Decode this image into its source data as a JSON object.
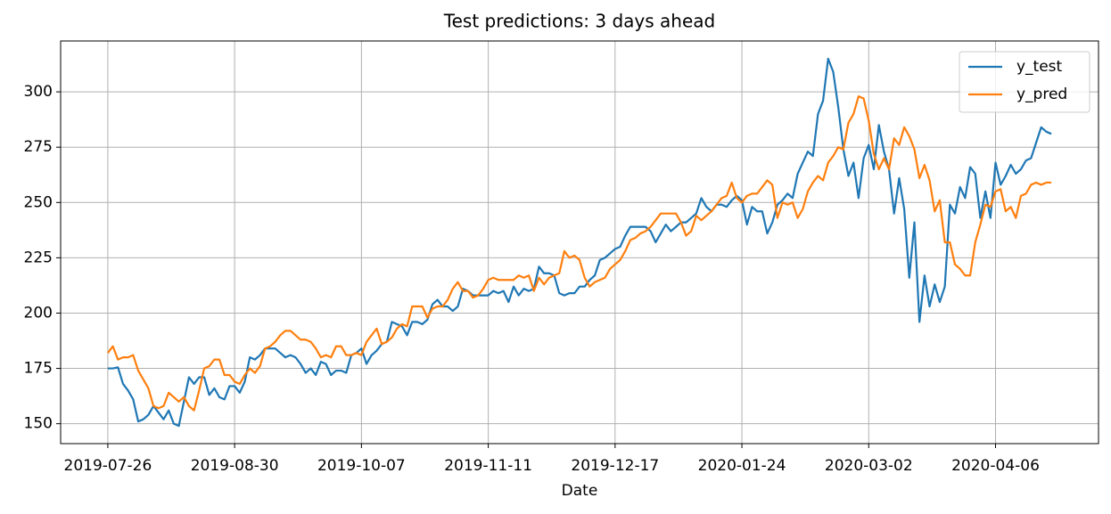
{
  "chart_data": {
    "type": "line",
    "title": "Test predictions: 3 days ahead",
    "x_label": "Date",
    "categories": [
      "2019-07-26",
      null,
      null,
      null,
      null,
      null,
      null,
      null,
      null,
      null,
      null,
      null,
      null,
      null,
      null,
      null,
      null,
      null,
      null,
      null,
      null,
      null,
      null,
      null,
      null,
      "2019-08-30",
      null,
      null,
      null,
      null,
      null,
      null,
      null,
      null,
      null,
      null,
      null,
      null,
      null,
      null,
      null,
      null,
      null,
      null,
      null,
      null,
      null,
      null,
      null,
      null,
      "2019-10-07",
      null,
      null,
      null,
      null,
      null,
      null,
      null,
      null,
      null,
      null,
      null,
      null,
      null,
      null,
      null,
      null,
      null,
      null,
      null,
      null,
      null,
      null,
      null,
      null,
      "2019-11-11",
      null,
      null,
      null,
      null,
      null,
      null,
      null,
      null,
      null,
      null,
      null,
      null,
      null,
      null,
      null,
      null,
      null,
      null,
      null,
      null,
      null,
      null,
      null,
      null,
      "2019-12-17",
      null,
      null,
      null,
      null,
      null,
      null,
      null,
      null,
      null,
      null,
      null,
      null,
      null,
      null,
      null,
      null,
      null,
      null,
      null,
      null,
      null,
      null,
      null,
      null,
      "2020-01-24",
      null,
      null,
      null,
      null,
      null,
      null,
      null,
      null,
      null,
      null,
      null,
      null,
      null,
      null,
      null,
      null,
      null,
      null,
      null,
      null,
      null,
      null,
      null,
      null,
      "2020-03-02",
      null,
      null,
      null,
      null,
      null,
      null,
      null,
      null,
      null,
      null,
      null,
      null,
      null,
      null,
      null,
      null,
      null,
      null,
      null,
      null,
      null,
      null,
      null,
      null,
      "2020-04-06",
      null,
      null,
      null,
      null,
      null,
      null,
      null,
      null,
      null,
      null,
      null
    ],
    "series": [
      {
        "name": "y_test",
        "color": "#1f77b4",
        "values": [
          175,
          175,
          175.5,
          168,
          165,
          161,
          151,
          152,
          154,
          158,
          155,
          152,
          156,
          150,
          149,
          160,
          171,
          168,
          171,
          171,
          163,
          166,
          162,
          161,
          167,
          167,
          164,
          169,
          180,
          179,
          181,
          184,
          184,
          184,
          182,
          180,
          181,
          180,
          177,
          173,
          175,
          172,
          178,
          177,
          172,
          174,
          174,
          173,
          181,
          182,
          184,
          177,
          181,
          183,
          186,
          187,
          196,
          195,
          194,
          190,
          196,
          196,
          195,
          197,
          204,
          206,
          203,
          203,
          201,
          203,
          211,
          210,
          208,
          208,
          208,
          208,
          210,
          209,
          210,
          205,
          212,
          208,
          211,
          210,
          211,
          221,
          218,
          218,
          217,
          209,
          208,
          209,
          209,
          212,
          212,
          215,
          217,
          224,
          225,
          227,
          229,
          230,
          235,
          239,
          239,
          239,
          239,
          237,
          232,
          236,
          240,
          237,
          239,
          241,
          241,
          243,
          245,
          252,
          248,
          246,
          249,
          249,
          248,
          251,
          253,
          251,
          240,
          248,
          246,
          246,
          236,
          241,
          249,
          251,
          254,
          252,
          263,
          268,
          273,
          271,
          290,
          296,
          315,
          309,
          293,
          274,
          262,
          268,
          252,
          270,
          276,
          265,
          285,
          273,
          265,
          245,
          261,
          247,
          216,
          241,
          196,
          217,
          203,
          213,
          205,
          212,
          249,
          245,
          257,
          252,
          266,
          263,
          243,
          255,
          243,
          268,
          258,
          262,
          267,
          263,
          265,
          269,
          270,
          277,
          284,
          282,
          281
        ]
      },
      {
        "name": "y_pred",
        "color": "#ff7f0e",
        "values": [
          182,
          185,
          179,
          180,
          180,
          181,
          174,
          170,
          166,
          158,
          157,
          158,
          164,
          162,
          160,
          162,
          158,
          156,
          165,
          175,
          176,
          179,
          179,
          172,
          172,
          169,
          168,
          172,
          175,
          173,
          176,
          184,
          185,
          187,
          190,
          192,
          192,
          190,
          188,
          188,
          187,
          184,
          180,
          181,
          180,
          185,
          185,
          181,
          181,
          182,
          181,
          187,
          190,
          193,
          186,
          187,
          189,
          193,
          195,
          194,
          203,
          203,
          203,
          198,
          202,
          203,
          203,
          206,
          211,
          214,
          210,
          210,
          207,
          208,
          211,
          215,
          216,
          215,
          215,
          215,
          215,
          217,
          216,
          217,
          210,
          216,
          213,
          216,
          217,
          218,
          228,
          225,
          226,
          224,
          216,
          212,
          214,
          215,
          216,
          220,
          222,
          224,
          228,
          233,
          234,
          236,
          237,
          239,
          242,
          245,
          245,
          245,
          245,
          241,
          235,
          237,
          244,
          242,
          244,
          246,
          249,
          252,
          253,
          259,
          252,
          250,
          253,
          254,
          254,
          257,
          260,
          258,
          243,
          250,
          249,
          250,
          243,
          247,
          255,
          259,
          262,
          260,
          268,
          271,
          275,
          274,
          286,
          290,
          298,
          297,
          287,
          272,
          265,
          270,
          265,
          279,
          276,
          284,
          280,
          274,
          261,
          267,
          260,
          246,
          251,
          232,
          232,
          222,
          220,
          217,
          217,
          232,
          240,
          249,
          248,
          255,
          256,
          246,
          248,
          243,
          253,
          254,
          258,
          259,
          258,
          259,
          259
        ]
      }
    ],
    "ylim": [
      141,
      323
    ],
    "yticks": [
      150,
      175,
      200,
      225,
      250,
      275,
      300
    ],
    "grid": true,
    "legend": "upper right"
  }
}
